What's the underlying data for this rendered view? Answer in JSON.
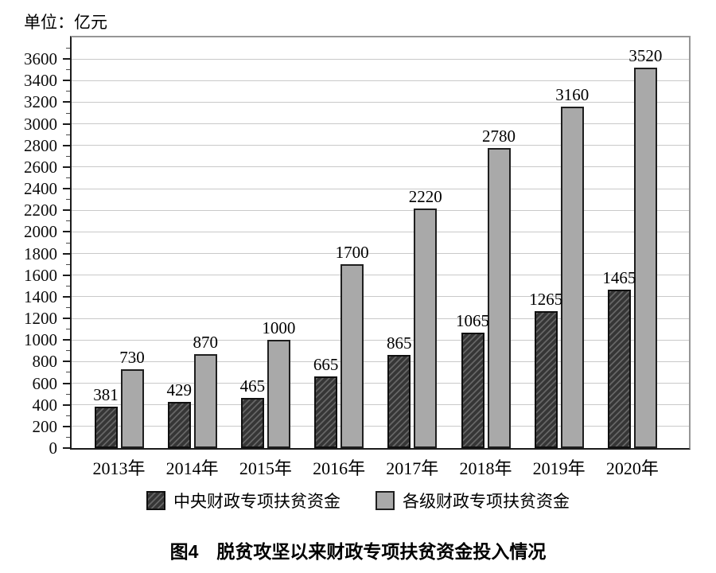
{
  "figure": {
    "unit_label": "单位：亿元",
    "caption": "图4　脱贫攻坚以来财政专项扶贫资金投入情况"
  },
  "chart_data": {
    "type": "bar",
    "title": "图4 脱贫攻坚以来财政专项扶贫资金投入情况",
    "unit_label": "单位：亿元",
    "categories": [
      "2013年",
      "2014年",
      "2015年",
      "2016年",
      "2017年",
      "2018年",
      "2019年",
      "2020年"
    ],
    "series": [
      {
        "name": "中央财政专项扶贫资金",
        "values": [
          381,
          429,
          465,
          665,
          865,
          1065,
          1265,
          1465
        ],
        "style": "dark-hatched",
        "color": "#363636"
      },
      {
        "name": "各级财政专项扶贫资金",
        "values": [
          730,
          870,
          1000,
          1700,
          2220,
          2780,
          3160,
          3520
        ],
        "style": "solid-gray",
        "color": "#a9a9a9"
      }
    ],
    "xlabel": "",
    "ylabel": "",
    "ylim": [
      0,
      3800
    ],
    "ytick_step": 200,
    "ytick_label_max": 3600,
    "minor_tick_step": 100,
    "grid": true,
    "gridline_color": "#c9c9c9",
    "legend_position": "bottom",
    "value_labels_shown": true
  }
}
